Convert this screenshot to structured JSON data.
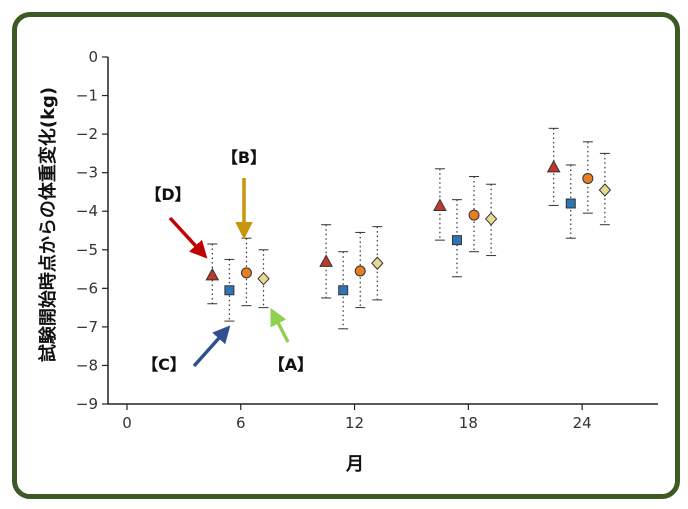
{
  "chart_data": {
    "type": "scatter",
    "title": "",
    "xlabel": "月",
    "ylabel": "試験開始時点からの体重変化(kg)",
    "xlim": [
      -1,
      28
    ],
    "ylim": [
      -9,
      0
    ],
    "xticks": [
      0,
      6,
      12,
      18,
      24
    ],
    "yticks": [
      0,
      -1,
      -2,
      -3,
      -4,
      -5,
      -6,
      -7,
      -8,
      -9
    ],
    "ytick_labels": [
      "0",
      "−1",
      "−2",
      "−3",
      "−4",
      "−5",
      "−6",
      "−7",
      "−8",
      "−9"
    ],
    "grid": false,
    "series": [
      {
        "marker": "triangle",
        "color": "#c0392b",
        "x": [
          4.5,
          10.5,
          16.5,
          22.5
        ],
        "y": [
          -5.65,
          -5.3,
          -3.85,
          -2.85
        ],
        "lower": [
          -6.4,
          -6.25,
          -4.75,
          -3.85
        ],
        "upper": [
          -4.85,
          -4.35,
          -2.9,
          -1.85
        ]
      },
      {
        "marker": "square",
        "color": "#2e75b6",
        "x": [
          5.4,
          11.4,
          17.4,
          23.4
        ],
        "y": [
          -6.05,
          -6.05,
          -4.75,
          -3.8
        ],
        "lower": [
          -6.85,
          -7.05,
          -5.7,
          -4.7
        ],
        "upper": [
          -5.25,
          -5.05,
          -3.7,
          -2.8
        ]
      },
      {
        "marker": "circle",
        "color": "#e67e22",
        "x": [
          6.3,
          12.3,
          18.3,
          24.3
        ],
        "y": [
          -5.6,
          -5.55,
          -4.1,
          -3.15
        ],
        "lower": [
          -6.45,
          -6.5,
          -5.05,
          -4.05
        ],
        "upper": [
          -4.7,
          -4.55,
          -3.1,
          -2.2
        ]
      },
      {
        "marker": "diamond",
        "color": "#e8d890",
        "x": [
          7.2,
          13.2,
          19.2,
          25.2
        ],
        "y": [
          -5.75,
          -5.35,
          -4.2,
          -3.45
        ],
        "lower": [
          -6.5,
          -6.3,
          -5.15,
          -4.35
        ],
        "upper": [
          -5.0,
          -4.4,
          -3.3,
          -2.5
        ]
      }
    ],
    "annotations": [
      {
        "label": "【A】",
        "color": "#8fd14f",
        "target_series": 3
      },
      {
        "label": "【B】",
        "color": "#c8960c",
        "target_series": 2
      },
      {
        "label": "【C】",
        "color": "#2f4f8f",
        "target_series": 1
      },
      {
        "label": "【D】",
        "color": "#c00000",
        "target_series": 0
      }
    ]
  }
}
